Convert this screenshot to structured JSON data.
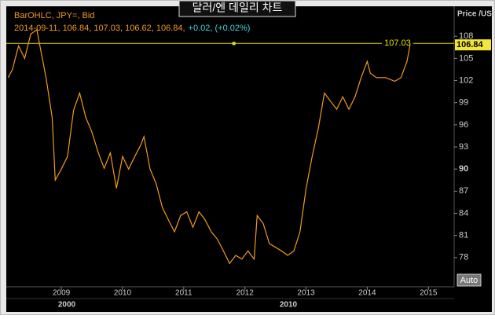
{
  "chart_data": {
    "type": "line",
    "title": "달러/엔 데일리 차트",
    "axis_label": "Price /USD",
    "ohlc_text": "2014-09-11, 106.84, 107.03, 106.62, 106.84,",
    "change_text": "+0.02, (+0.02%)",
    "era_labels": [
      "2000",
      "2010"
    ],
    "button": "Auto",
    "series": [
      {
        "name": "BarOHLC, JPY=, Bid",
        "color": "#f29a1d",
        "x": [
          2008.13,
          2008.2,
          2008.3,
          2008.4,
          2008.5,
          2008.6,
          2008.65,
          2008.75,
          2008.85,
          2008.9,
          2009.0,
          2009.1,
          2009.2,
          2009.3,
          2009.4,
          2009.5,
          2009.6,
          2009.7,
          2009.8,
          2009.9,
          2010.0,
          2010.1,
          2010.2,
          2010.3,
          2010.35,
          2010.45,
          2010.55,
          2010.65,
          2010.75,
          2010.85,
          2010.95,
          2011.05,
          2011.15,
          2011.25,
          2011.35,
          2011.45,
          2011.55,
          2011.65,
          2011.75,
          2011.85,
          2011.95,
          2012.05,
          2012.15,
          2012.2,
          2012.3,
          2012.4,
          2012.5,
          2012.6,
          2012.7,
          2012.8,
          2012.9,
          2013.0,
          2013.1,
          2013.2,
          2013.3,
          2013.4,
          2013.5,
          2013.6,
          2013.7,
          2013.8,
          2013.9,
          2014.0,
          2014.05,
          2014.15,
          2014.3,
          2014.45,
          2014.55,
          2014.65,
          2014.7
        ],
        "values": [
          102.4,
          103.5,
          106.7,
          105.0,
          108.3,
          108.9,
          106.7,
          102.4,
          97.0,
          88.5,
          90.0,
          91.7,
          98.0,
          100.3,
          97.0,
          95.0,
          92.3,
          90.1,
          92.2,
          87.4,
          91.7,
          90.0,
          91.7,
          93.3,
          94.4,
          90.0,
          88.0,
          84.8,
          83.1,
          81.5,
          83.7,
          84.2,
          82.1,
          84.2,
          83.1,
          81.5,
          80.5,
          78.9,
          77.2,
          78.3,
          77.8,
          78.9,
          77.8,
          83.7,
          82.6,
          79.9,
          79.4,
          78.9,
          78.3,
          78.9,
          81.5,
          87.4,
          91.7,
          95.5,
          100.3,
          99.2,
          98.1,
          99.8,
          98.1,
          99.8,
          102.4,
          104.6,
          103.0,
          102.4,
          102.4,
          101.9,
          102.4,
          104.6,
          106.84
        ]
      }
    ],
    "last_value": 106.84,
    "hline": 107.03,
    "hline_color": "#e8e000",
    "xlim": [
      2008.1,
      2015.42
    ],
    "xticks": [
      2009,
      2010,
      2011,
      2012,
      2013,
      2014,
      2015
    ],
    "ylim": [
      74.04,
      112.07
    ],
    "yticks": [
      108,
      105,
      102,
      99,
      96,
      93,
      90,
      87,
      84,
      81,
      78
    ],
    "major_yticks": [
      90
    ]
  }
}
